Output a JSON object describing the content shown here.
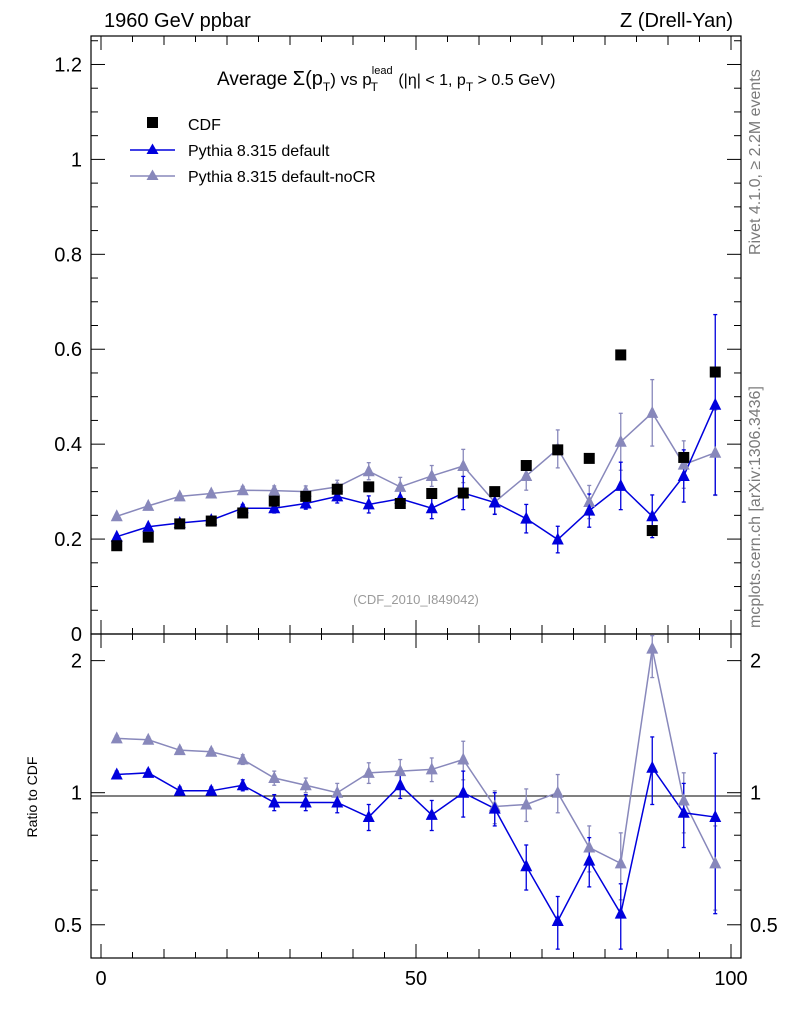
{
  "chart_data": {
    "type": "line",
    "header_left": "1960 GeV ppbar",
    "header_right": "Z (Drell-Yan)",
    "title": "Average Σ(pT) vs pT lead (|η| < 1, pT > 0.5 GeV)",
    "title_parts": {
      "average": "Average ",
      "sigma": "Σ(p",
      "t": "T",
      "close_vs": ") vs p",
      "lead": "lead",
      "cut_open": " (|η| < 1, p",
      "cut_close": " > 0.5 GeV)"
    },
    "watermark": "(CDF_2010_I849042)",
    "side_top": "Rivet 4.1.0, ≥ 2.2M events",
    "side_bottom": "mcplots.cern.ch [arXiv:1306.3436]",
    "ratio_ylabel": "Ratio to CDF",
    "x_ticks": [
      "0",
      "50",
      "100"
    ],
    "main_y_ticks": [
      "0",
      "0.2",
      "0.4",
      "0.6",
      "0.8",
      "1",
      "1.2"
    ],
    "ratio_y_ticks": [
      "0.5",
      "1",
      "2"
    ],
    "xlim": [
      0,
      100
    ],
    "main_ylim": [
      0,
      1.26
    ],
    "ratio_ylim": [
      0.42,
      2.3
    ],
    "x": [
      2.5,
      7.5,
      12.5,
      17.5,
      22.5,
      27.5,
      32.5,
      37.5,
      42.5,
      47.5,
      52.5,
      57.5,
      62.5,
      67.5,
      72.5,
      77.5,
      82.5,
      87.5,
      92.5,
      97.5
    ],
    "series": [
      {
        "name": "CDF",
        "color": "#000000",
        "marker": "square",
        "values": [
          0.186,
          0.204,
          0.232,
          0.238,
          0.255,
          0.28,
          0.29,
          0.305,
          0.31,
          0.275,
          0.296,
          0.297,
          0.3,
          0.355,
          0.388,
          0.37,
          0.588,
          0.218,
          0.372,
          0.552
        ]
      },
      {
        "name": "Pythia 8.315 default",
        "color": "#0000dd",
        "marker": "triangle",
        "values": [
          0.205,
          0.226,
          0.234,
          0.24,
          0.265,
          0.265,
          0.275,
          0.29,
          0.273,
          0.285,
          0.265,
          0.297,
          0.277,
          0.243,
          0.199,
          0.26,
          0.312,
          0.248,
          0.333,
          0.483
        ],
        "errors": [
          0.004,
          0.005,
          0.006,
          0.006,
          0.008,
          0.01,
          0.012,
          0.014,
          0.018,
          0.02,
          0.022,
          0.035,
          0.025,
          0.03,
          0.028,
          0.035,
          0.05,
          0.045,
          0.055,
          0.19
        ],
        "ratio": [
          1.1,
          1.11,
          1.01,
          1.01,
          1.04,
          0.95,
          0.95,
          0.95,
          0.88,
          1.04,
          0.89,
          1.0,
          0.92,
          0.68,
          0.51,
          0.7,
          0.53,
          1.14,
          0.9,
          0.88
        ],
        "ratio_errors": [
          0.02,
          0.02,
          0.02,
          0.02,
          0.03,
          0.04,
          0.04,
          0.05,
          0.06,
          0.07,
          0.07,
          0.12,
          0.08,
          0.08,
          0.07,
          0.09,
          0.09,
          0.2,
          0.15,
          0.35
        ]
      },
      {
        "name": "Pythia 8.315 default-noCR",
        "color": "#8888bb",
        "marker": "triangle",
        "values": [
          0.248,
          0.27,
          0.29,
          0.296,
          0.303,
          0.302,
          0.3,
          0.31,
          0.343,
          0.31,
          0.333,
          0.354,
          0.278,
          0.333,
          0.39,
          0.278,
          0.405,
          0.466,
          0.357,
          0.382
        ],
        "errors": [
          0.004,
          0.005,
          0.006,
          0.006,
          0.008,
          0.01,
          0.012,
          0.014,
          0.018,
          0.02,
          0.022,
          0.035,
          0.025,
          0.03,
          0.04,
          0.035,
          0.06,
          0.07,
          0.05,
          0.09
        ],
        "ratio": [
          1.33,
          1.32,
          1.25,
          1.24,
          1.19,
          1.08,
          1.04,
          1.0,
          1.11,
          1.12,
          1.13,
          1.19,
          0.93,
          0.94,
          1.0,
          0.75,
          0.69,
          2.13,
          0.96,
          0.69
        ],
        "ratio_errors": [
          0.02,
          0.02,
          0.02,
          0.02,
          0.03,
          0.04,
          0.04,
          0.05,
          0.06,
          0.07,
          0.07,
          0.12,
          0.08,
          0.08,
          0.1,
          0.09,
          0.12,
          0.3,
          0.15,
          0.15
        ]
      }
    ]
  }
}
